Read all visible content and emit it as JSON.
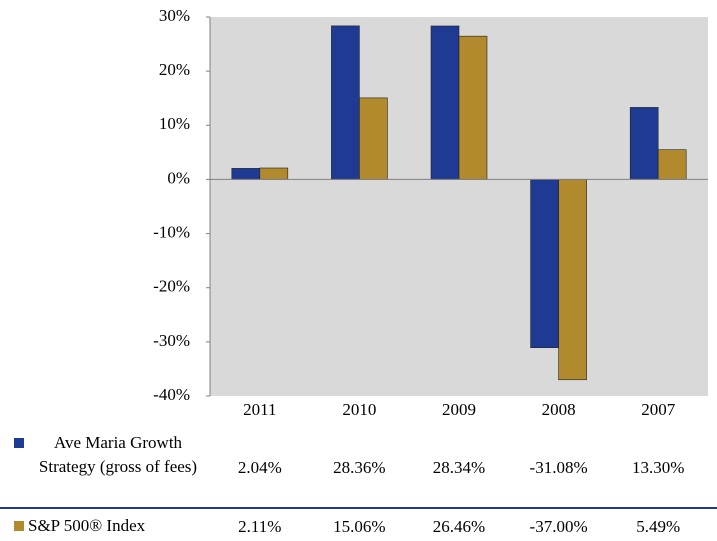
{
  "chart_data": {
    "type": "bar",
    "categories": [
      "2011",
      "2010",
      "2009",
      "2008",
      "2007"
    ],
    "series": [
      {
        "name": "Ave Maria Growth Strategy (gross of fees)",
        "color": "#1f3a93",
        "values": [
          2.04,
          28.36,
          28.34,
          -31.08,
          13.3
        ],
        "value_labels": [
          "2.04%",
          "28.36%",
          "28.34%",
          "-31.08%",
          "13.30%"
        ]
      },
      {
        "name": "S&P 500® Index",
        "color": "#b08a2c",
        "values": [
          2.11,
          15.06,
          26.46,
          -37.0,
          5.49
        ],
        "value_labels": [
          "2.11%",
          "15.06%",
          "26.46%",
          "-37.00%",
          "5.49%"
        ]
      }
    ],
    "ylim": [
      -40,
      30
    ],
    "yticks": [
      {
        "value": -40,
        "label": "-40%"
      },
      {
        "value": -30,
        "label": "-30%"
      },
      {
        "value": -20,
        "label": "-20%"
      },
      {
        "value": -10,
        "label": "-10%"
      },
      {
        "value": 0,
        "label": "0%"
      },
      {
        "value": 10,
        "label": "10%"
      },
      {
        "value": 20,
        "label": "20%"
      },
      {
        "value": 30,
        "label": "30%"
      }
    ]
  }
}
